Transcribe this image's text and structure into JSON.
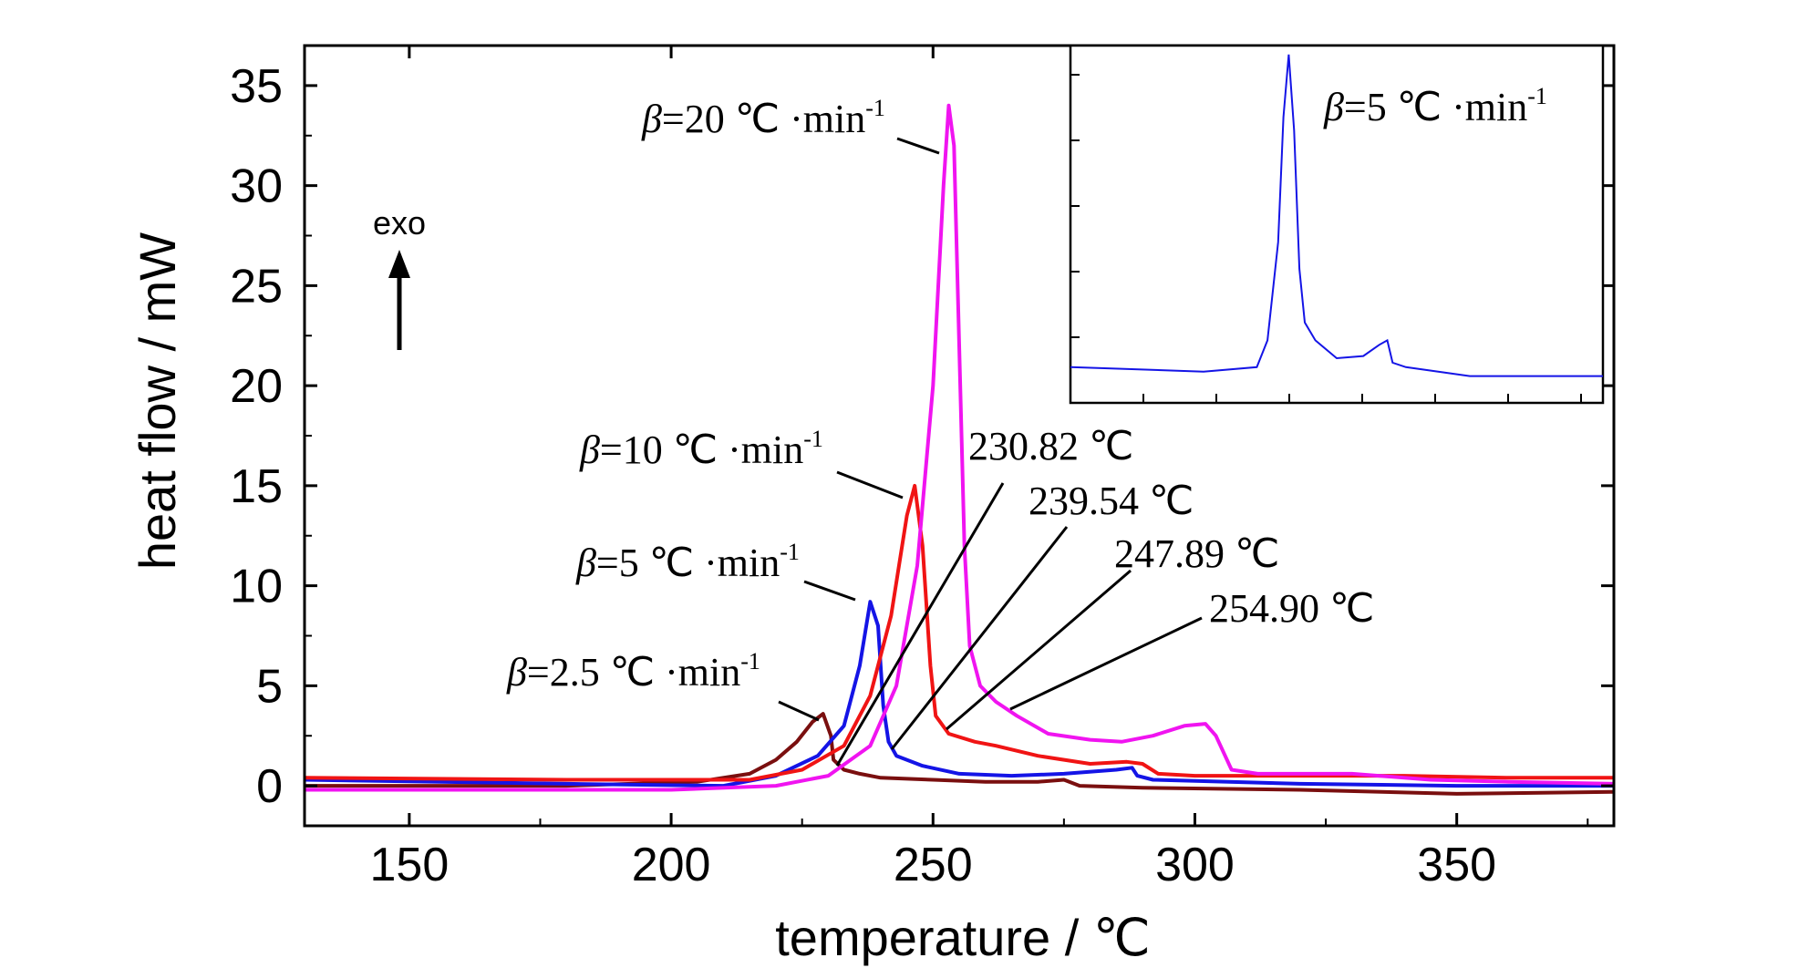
{
  "chart_data": {
    "type": "line",
    "xlabel": "temperature / ℃",
    "ylabel": "heat  flow / mW",
    "xlim": [
      130,
      380
    ],
    "ylim": [
      -2,
      37
    ],
    "x_ticks": [
      "150",
      "200",
      "250",
      "300",
      "350"
    ],
    "y_ticks": [
      "0",
      "5",
      "10",
      "15",
      "20",
      "25",
      "30",
      "35"
    ],
    "grid": false,
    "exo_label": "exo",
    "series": [
      {
        "name": "β=2.5 ℃·min⁻¹",
        "color": "#7a0f0f",
        "points": [
          [
            130,
            0.0
          ],
          [
            180,
            0.0
          ],
          [
            205,
            0.2
          ],
          [
            215,
            0.6
          ],
          [
            220,
            1.3
          ],
          [
            224,
            2.2
          ],
          [
            227,
            3.2
          ],
          [
            229,
            3.6
          ],
          [
            230.5,
            2.5
          ],
          [
            231,
            1.3
          ],
          [
            233,
            0.8
          ],
          [
            236,
            0.6
          ],
          [
            240,
            0.4
          ],
          [
            250,
            0.3
          ],
          [
            260,
            0.2
          ],
          [
            270,
            0.2
          ],
          [
            275,
            0.3
          ],
          [
            278,
            0.0
          ],
          [
            290,
            -0.1
          ],
          [
            320,
            -0.2
          ],
          [
            350,
            -0.4
          ],
          [
            380,
            -0.3
          ]
        ]
      },
      {
        "name": "β=5 ℃·min⁻¹",
        "color": "#1414e6",
        "points": [
          [
            130,
            0.3
          ],
          [
            180,
            0.1
          ],
          [
            210,
            0.0
          ],
          [
            220,
            0.5
          ],
          [
            228,
            1.5
          ],
          [
            233,
            3.0
          ],
          [
            236,
            6.0
          ],
          [
            238,
            9.2
          ],
          [
            239.5,
            8.0
          ],
          [
            240.5,
            4.0
          ],
          [
            241.5,
            2.2
          ],
          [
            243,
            1.5
          ],
          [
            248,
            1.0
          ],
          [
            255,
            0.6
          ],
          [
            265,
            0.5
          ],
          [
            275,
            0.6
          ],
          [
            285,
            0.8
          ],
          [
            288,
            0.9
          ],
          [
            289,
            0.5
          ],
          [
            292,
            0.3
          ],
          [
            320,
            0.1
          ],
          [
            350,
            0.0
          ],
          [
            380,
            0.0
          ]
        ]
      },
      {
        "name": "β=10 ℃·min⁻¹",
        "color": "#f01414",
        "points": [
          [
            130,
            0.4
          ],
          [
            180,
            0.3
          ],
          [
            215,
            0.3
          ],
          [
            225,
            0.8
          ],
          [
            233,
            2.0
          ],
          [
            238,
            4.5
          ],
          [
            242,
            8.5
          ],
          [
            245,
            13.5
          ],
          [
            246.5,
            15.0
          ],
          [
            248,
            12.0
          ],
          [
            249.5,
            6.0
          ],
          [
            250.5,
            3.5
          ],
          [
            253,
            2.6
          ],
          [
            258,
            2.2
          ],
          [
            262,
            2.0
          ],
          [
            270,
            1.5
          ],
          [
            280,
            1.1
          ],
          [
            287,
            1.2
          ],
          [
            290,
            1.1
          ],
          [
            293,
            0.6
          ],
          [
            300,
            0.5
          ],
          [
            320,
            0.5
          ],
          [
            340,
            0.5
          ],
          [
            360,
            0.4
          ],
          [
            380,
            0.4
          ]
        ]
      },
      {
        "name": "β=20 ℃·min⁻¹",
        "color": "#f014f0",
        "points": [
          [
            130,
            -0.2
          ],
          [
            200,
            -0.2
          ],
          [
            220,
            0.0
          ],
          [
            230,
            0.5
          ],
          [
            238,
            2.0
          ],
          [
            243,
            5.0
          ],
          [
            247,
            11.0
          ],
          [
            250,
            20.0
          ],
          [
            252,
            30.0
          ],
          [
            253,
            34.0
          ],
          [
            254,
            32.0
          ],
          [
            255,
            22.0
          ],
          [
            256,
            12.0
          ],
          [
            257,
            7.0
          ],
          [
            259,
            5.0
          ],
          [
            262,
            4.2
          ],
          [
            266,
            3.5
          ],
          [
            272,
            2.6
          ],
          [
            280,
            2.3
          ],
          [
            286,
            2.2
          ],
          [
            292,
            2.5
          ],
          [
            298,
            3.0
          ],
          [
            302,
            3.1
          ],
          [
            304,
            2.5
          ],
          [
            307,
            0.8
          ],
          [
            312,
            0.6
          ],
          [
            330,
            0.6
          ],
          [
            345,
            0.3
          ],
          [
            360,
            0.2
          ],
          [
            380,
            0.1
          ]
        ]
      }
    ],
    "labels": [
      {
        "text": "=20 ℃ ·min",
        "beta": "β",
        "sup": "-1"
      },
      {
        "text": "=10 ℃ ·min",
        "beta": "β",
        "sup": "-1"
      },
      {
        "text": "=5 ℃ ·min",
        "beta": "β",
        "sup": "-1"
      },
      {
        "text": "=2.5 ℃ ·min",
        "beta": "β",
        "sup": "-1"
      }
    ],
    "peak_annotations": [
      "230.82 ℃",
      "239.54 ℃",
      "247.89 ℃",
      "254.90 ℃"
    ],
    "inset": {
      "label": {
        "beta": "β",
        "text": "=5 ℃ ·min",
        "sup": "-1"
      },
      "color": "#1414e6",
      "points": [
        [
          0,
          0.2
        ],
        [
          25,
          0.1
        ],
        [
          35,
          0.2
        ],
        [
          37,
          0.8
        ],
        [
          39,
          3.0
        ],
        [
          40,
          5.8
        ],
        [
          41,
          7.2
        ],
        [
          42,
          5.5
        ],
        [
          43,
          2.4
        ],
        [
          44,
          1.2
        ],
        [
          46,
          0.8
        ],
        [
          50,
          0.4
        ],
        [
          55,
          0.45
        ],
        [
          58,
          0.7
        ],
        [
          59.5,
          0.8
        ],
        [
          60.5,
          0.3
        ],
        [
          63,
          0.2
        ],
        [
          75,
          0.0
        ],
        [
          100,
          0.0
        ]
      ]
    }
  }
}
